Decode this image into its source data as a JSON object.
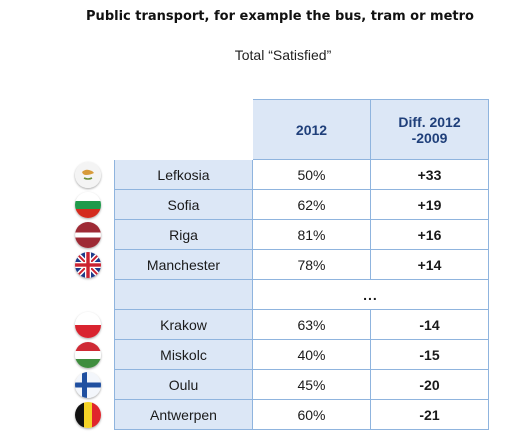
{
  "title": "Public transport, for example the bus, tram or metro",
  "subtitle": "Total “Satisfied”",
  "chart_data": {
    "type": "table",
    "columns": [
      "2012",
      "Diff. 2012\n-2009"
    ],
    "col_2012": "2012",
    "col_diff_line1": "Diff. 2012",
    "col_diff_line2": "-2009",
    "ellipsis": "...",
    "rows": [
      {
        "city": "Lefkosia",
        "value": "50%",
        "diff": "+33",
        "flag": "cyprus-flag-icon"
      },
      {
        "city": "Sofia",
        "value": "62%",
        "diff": "+19",
        "flag": "bulgaria-flag-icon"
      },
      {
        "city": "Riga",
        "value": "81%",
        "diff": "+16",
        "flag": "latvia-flag-icon"
      },
      {
        "city": "Manchester",
        "value": "78%",
        "diff": "+14",
        "flag": "uk-flag-icon"
      },
      {
        "city": "Krakow",
        "value": "63%",
        "diff": "-14",
        "flag": "poland-flag-icon"
      },
      {
        "city": "Miskolc",
        "value": "40%",
        "diff": "-15",
        "flag": "hungary-flag-icon"
      },
      {
        "city": "Oulu",
        "value": "45%",
        "diff": "-20",
        "flag": "finland-flag-icon"
      },
      {
        "city": "Antwerpen",
        "value": "60%",
        "diff": "-21",
        "flag": "belgium-flag-icon"
      }
    ]
  }
}
